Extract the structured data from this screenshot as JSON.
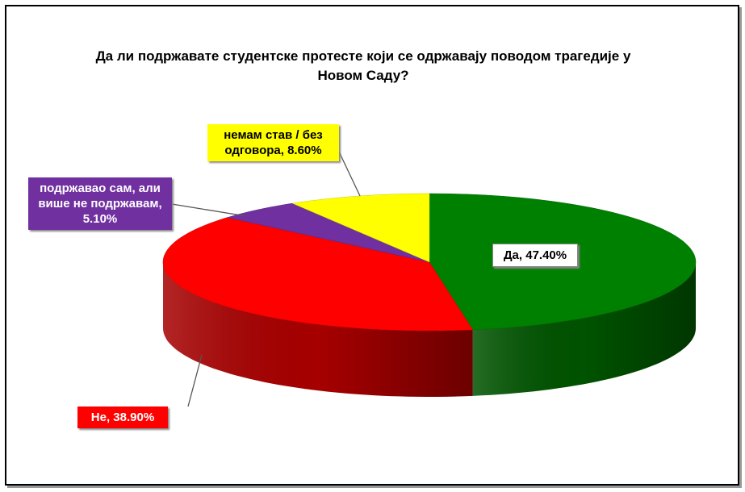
{
  "chart_data": {
    "type": "pie3d",
    "title": "Да ли подржавате студентске протесте који се одржавају поводом трагедије у Новом Саду?",
    "categories": [
      "Да",
      "Не",
      "подржавао сам, али више не подржавам",
      "немам став / без одговора"
    ],
    "values": [
      47.4,
      38.9,
      5.1,
      8.6
    ],
    "value_labels": [
      "Да, 47.40%",
      "Не, 38.90%",
      "подржавао сам, али више не подржавам, 5.10%",
      "немам став / без одговора, 8.60%"
    ],
    "colors": [
      "#008000",
      "#ff0000",
      "#7030a0",
      "#ffff00"
    ]
  }
}
